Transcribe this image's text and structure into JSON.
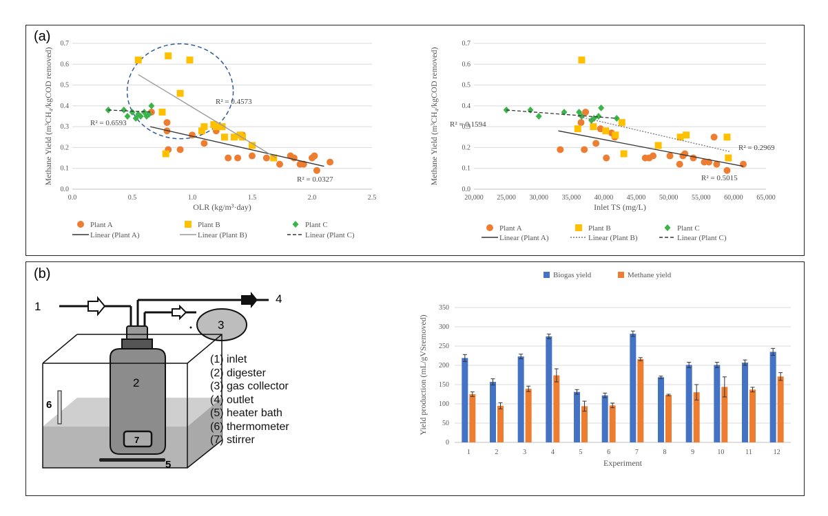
{
  "panel_a_label": "(a)",
  "panel_b_label": "(b)",
  "chart_data": [
    {
      "type": "scatter",
      "xlabel": "OLR (kg/m³·day)",
      "ylabel": "Methane Yield (m³CH₄/kgCOD removed)",
      "xlim": [
        0,
        2.5
      ],
      "ylim": [
        0,
        0.7
      ],
      "xticks": [
        "0.0",
        "0.5",
        "1.0",
        "1.5",
        "2.0",
        "2.5"
      ],
      "yticks": [
        "0.0",
        "0.1",
        "0.2",
        "0.3",
        "0.4",
        "0.5",
        "0.6",
        "0.7"
      ],
      "legend": [
        "Plant A",
        "Plant B",
        "Plant C",
        "Linear (Plant A)",
        "Linear (Plant B)",
        "Linear (Plant C)"
      ],
      "legend_position": "bottom",
      "series": [
        {
          "name": "Plant A",
          "marker": "circle",
          "color": "#ed7d31",
          "points": [
            [
              0.66,
              0.37
            ],
            [
              0.79,
              0.32
            ],
            [
              0.79,
              0.28
            ],
            [
              0.8,
              0.19
            ],
            [
              0.9,
              0.19
            ],
            [
              1.0,
              0.26
            ],
            [
              1.1,
              0.22
            ],
            [
              1.2,
              0.28
            ],
            [
              1.3,
              0.15
            ],
            [
              1.38,
              0.15
            ],
            [
              1.42,
              0.26
            ],
            [
              1.5,
              0.16
            ],
            [
              1.62,
              0.15
            ],
            [
              1.73,
              0.12
            ],
            [
              1.82,
              0.16
            ],
            [
              1.85,
              0.15
            ],
            [
              1.9,
              0.12
            ],
            [
              1.93,
              0.12
            ],
            [
              2.0,
              0.15
            ],
            [
              2.02,
              0.16
            ],
            [
              2.04,
              0.09
            ],
            [
              2.15,
              0.13
            ]
          ]
        },
        {
          "name": "Plant B",
          "marker": "square",
          "color": "#ffc000",
          "points": [
            [
              0.55,
              0.62
            ],
            [
              0.78,
              0.17
            ],
            [
              0.8,
              0.64
            ],
            [
              0.75,
              0.37
            ],
            [
              0.9,
              0.46
            ],
            [
              0.98,
              0.62
            ],
            [
              1.08,
              0.28
            ],
            [
              1.1,
              0.3
            ],
            [
              1.18,
              0.31
            ],
            [
              1.2,
              0.3
            ],
            [
              1.25,
              0.3
            ],
            [
              1.27,
              0.25
            ],
            [
              1.35,
              0.25
            ],
            [
              1.4,
              0.26
            ],
            [
              1.42,
              0.25
            ],
            [
              1.5,
              0.21
            ],
            [
              1.68,
              0.15
            ]
          ]
        },
        {
          "name": "Plant C",
          "marker": "diamond",
          "color": "#3cb44b",
          "points": [
            [
              0.3,
              0.38
            ],
            [
              0.43,
              0.38
            ],
            [
              0.46,
              0.35
            ],
            [
              0.5,
              0.37
            ],
            [
              0.53,
              0.34
            ],
            [
              0.55,
              0.36
            ],
            [
              0.57,
              0.35
            ],
            [
              0.6,
              0.37
            ],
            [
              0.62,
              0.35
            ],
            [
              0.64,
              0.36
            ],
            [
              0.66,
              0.4
            ]
          ]
        }
      ],
      "trendlines": [
        {
          "name": "Linear (Plant A)",
          "from": [
            0.65,
            0.3
          ],
          "to": [
            2.1,
            0.11
          ],
          "style": "solid",
          "color": "#333",
          "r2": "R² = 0.6593"
        },
        {
          "name": "Linear (Plant B)",
          "from": [
            0.55,
            0.55
          ],
          "to": [
            1.7,
            0.15
          ],
          "style": "solid",
          "color": "#999",
          "r2": "R² = 0.4573"
        },
        {
          "name": "Linear (Plant C)",
          "from": [
            0.3,
            0.38
          ],
          "to": [
            0.67,
            0.37
          ],
          "style": "dashed",
          "color": "#333",
          "r2": "R² = 0.0327"
        }
      ]
    },
    {
      "type": "scatter",
      "xlabel": "Inlet TS (mg/L)",
      "ylabel": "Methane Yield (m³CH₄/kgCOD removed)",
      "xlim": [
        20000,
        65000
      ],
      "ylim": [
        0,
        0.7
      ],
      "xticks": [
        "20,000",
        "25,000",
        "30,000",
        "35,000",
        "40,000",
        "45,000",
        "50,000",
        "55,000",
        "60,000",
        "65,000"
      ],
      "yticks": [
        "0.0",
        "0.1",
        "0.2",
        "0.3",
        "0.4",
        "0.5",
        "0.6",
        "0.7"
      ],
      "legend": [
        "Plant A",
        "Plant B",
        "Plant C",
        "Linear (Plant A)",
        "Linear (Plant B)",
        "Linear (Plant C)"
      ],
      "legend_position": "bottom",
      "series": [
        {
          "name": "Plant A",
          "marker": "circle",
          "color": "#ed7d31",
          "points": [
            [
              33300,
              0.19
            ],
            [
              36500,
              0.32
            ],
            [
              37000,
              0.19
            ],
            [
              37200,
              0.37
            ],
            [
              38800,
              0.22
            ],
            [
              39500,
              0.29
            ],
            [
              40400,
              0.15
            ],
            [
              41200,
              0.27
            ],
            [
              41700,
              0.25
            ],
            [
              46400,
              0.15
            ],
            [
              47000,
              0.15
            ],
            [
              47600,
              0.16
            ],
            [
              50200,
              0.16
            ],
            [
              51700,
              0.12
            ],
            [
              52200,
              0.16
            ],
            [
              52500,
              0.17
            ],
            [
              53800,
              0.15
            ],
            [
              55500,
              0.13
            ],
            [
              56200,
              0.13
            ],
            [
              57000,
              0.25
            ],
            [
              57400,
              0.12
            ],
            [
              59000,
              0.09
            ],
            [
              61500,
              0.12
            ]
          ]
        },
        {
          "name": "Plant B",
          "marker": "square",
          "color": "#ffc000",
          "points": [
            [
              36000,
              0.29
            ],
            [
              36600,
              0.62
            ],
            [
              38400,
              0.3
            ],
            [
              40300,
              0.28
            ],
            [
              41800,
              0.26
            ],
            [
              42800,
              0.32
            ],
            [
              43100,
              0.17
            ],
            [
              48400,
              0.21
            ],
            [
              51800,
              0.25
            ],
            [
              52700,
              0.26
            ],
            [
              59000,
              0.25
            ],
            [
              59200,
              0.15
            ]
          ]
        },
        {
          "name": "Plant C",
          "marker": "diamond",
          "color": "#3cb44b",
          "points": [
            [
              25000,
              0.38
            ],
            [
              28700,
              0.38
            ],
            [
              30000,
              0.35
            ],
            [
              33900,
              0.37
            ],
            [
              36200,
              0.37
            ],
            [
              36600,
              0.35
            ],
            [
              38100,
              0.33
            ],
            [
              38500,
              0.34
            ],
            [
              39200,
              0.35
            ],
            [
              39600,
              0.39
            ],
            [
              42000,
              0.34
            ]
          ]
        }
      ],
      "trendlines": [
        {
          "name": "Linear (Plant A)",
          "from": [
            33000,
            0.28
          ],
          "to": [
            61500,
            0.11
          ],
          "style": "solid",
          "color": "#333",
          "r2": "R² = 0.5015"
        },
        {
          "name": "Linear (Plant B)",
          "from": [
            36000,
            0.35
          ],
          "to": [
            59500,
            0.18
          ],
          "style": "dotted",
          "color": "#777",
          "r2": "R² = 0.2969"
        },
        {
          "name": "Linear (Plant C)",
          "from": [
            25000,
            0.38
          ],
          "to": [
            42000,
            0.34
          ],
          "style": "dashed",
          "color": "#333",
          "r2": "R² = 0.1594"
        }
      ]
    },
    {
      "type": "bar",
      "xlabel": "Experiment",
      "ylabel": "Yield production (mL/gVSremoved)",
      "ylim": [
        0,
        350
      ],
      "yticks": [
        "0",
        "50",
        "100",
        "150",
        "200",
        "250",
        "300",
        "350"
      ],
      "categories": [
        "1",
        "2",
        "3",
        "4",
        "5",
        "6",
        "7",
        "8",
        "9",
        "10",
        "11",
        "12"
      ],
      "legend_position": "top",
      "series": [
        {
          "name": "Biogas yield",
          "color": "#4472c4",
          "values": [
            219,
            157,
            223,
            275,
            131,
            122,
            282,
            169,
            201,
            201,
            207,
            235
          ],
          "errors": [
            9,
            8,
            6,
            6,
            6,
            6,
            7,
            3,
            7,
            7,
            7,
            9
          ]
        },
        {
          "name": "Methane yield",
          "color": "#ed7d31",
          "values": [
            125,
            95,
            139,
            174,
            94,
            96,
            216,
            123,
            130,
            144,
            137,
            171
          ],
          "errors": [
            6,
            8,
            7,
            17,
            13,
            6,
            4,
            2,
            20,
            26,
            6,
            10
          ]
        }
      ]
    }
  ],
  "diagram": {
    "inlet_number": "1",
    "outlet_number": "4",
    "collector_number": "3",
    "digester_number": "2",
    "stirrer_number": "7",
    "heater_number": "5",
    "thermometer_number": "6",
    "key": [
      "(1) inlet",
      "(2) digester",
      "(3) gas collector",
      "(4) outlet",
      "(5) heater bath",
      "(6) thermometer",
      "(7) stirrer"
    ]
  }
}
